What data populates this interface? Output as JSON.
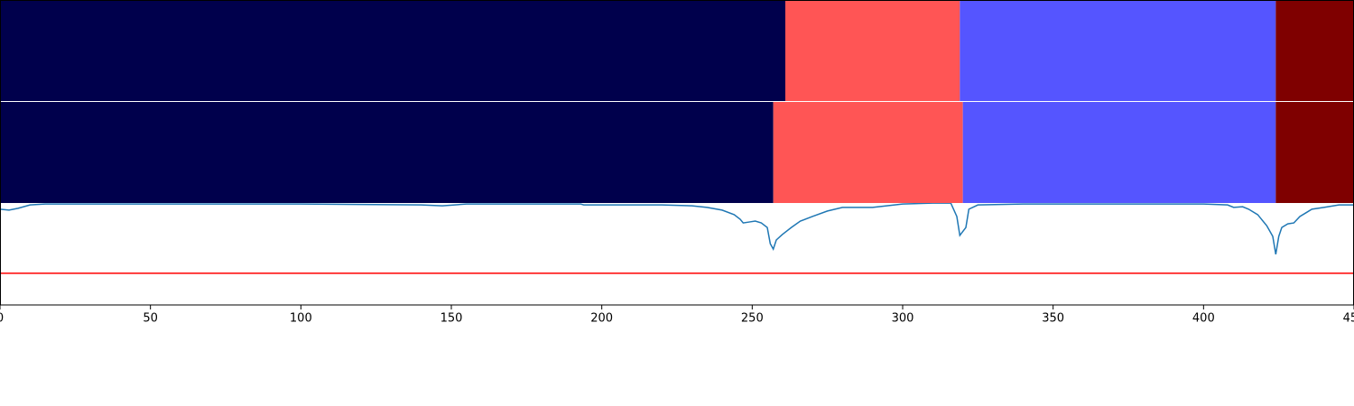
{
  "chart_data": {
    "type": "line",
    "xlim": [
      0,
      450
    ],
    "xticks": [
      0,
      50,
      100,
      150,
      200,
      250,
      300,
      350,
      400,
      450
    ],
    "ylim": [
      0,
      1
    ],
    "x": [
      0,
      3,
      6,
      10,
      15,
      50,
      100,
      140,
      147,
      155,
      193,
      194,
      220,
      230,
      235,
      240,
      244,
      246,
      247,
      249,
      251,
      253,
      255,
      256,
      257,
      258,
      260,
      263,
      266,
      270,
      275,
      280,
      290,
      300,
      310,
      316,
      318,
      319,
      321,
      322,
      325,
      340,
      360,
      380,
      400,
      408,
      410,
      413,
      415,
      418,
      421,
      423,
      424,
      425,
      426,
      428,
      430,
      432,
      434,
      436,
      440,
      445,
      450
    ],
    "series": [
      {
        "color": "#1f77b4",
        "values": [
          0.314,
          0.311,
          0.317,
          0.328,
          0.331,
          0.331,
          0.331,
          0.328,
          0.325,
          0.331,
          0.331,
          0.328,
          0.328,
          0.325,
          0.32,
          0.311,
          0.296,
          0.281,
          0.269,
          0.272,
          0.275,
          0.269,
          0.254,
          0.201,
          0.183,
          0.213,
          0.231,
          0.254,
          0.275,
          0.29,
          0.308,
          0.32,
          0.32,
          0.331,
          0.334,
          0.334,
          0.29,
          0.228,
          0.254,
          0.314,
          0.328,
          0.331,
          0.331,
          0.331,
          0.331,
          0.328,
          0.32,
          0.322,
          0.314,
          0.296,
          0.26,
          0.225,
          0.166,
          0.225,
          0.254,
          0.266,
          0.269,
          0.29,
          0.302,
          0.314,
          0.32,
          0.328,
          0.328
        ]
      }
    ],
    "threshold": {
      "value": 0.104,
      "color": "#ff0000"
    },
    "segment_rows": [
      [
        {
          "start": 0,
          "end": 261,
          "color": "#00004c"
        },
        {
          "start": 261,
          "end": 319,
          "color": "#ff5555"
        },
        {
          "start": 319,
          "end": 424,
          "color": "#5555ff"
        },
        {
          "start": 424,
          "end": 450,
          "color": "#7f0000"
        }
      ],
      [
        {
          "start": 0,
          "end": 257,
          "color": "#00004c"
        },
        {
          "start": 257,
          "end": 320,
          "color": "#ff5555"
        },
        {
          "start": 320,
          "end": 424,
          "color": "#5555ff"
        },
        {
          "start": 424,
          "end": 450,
          "color": "#7f0000"
        }
      ]
    ]
  }
}
